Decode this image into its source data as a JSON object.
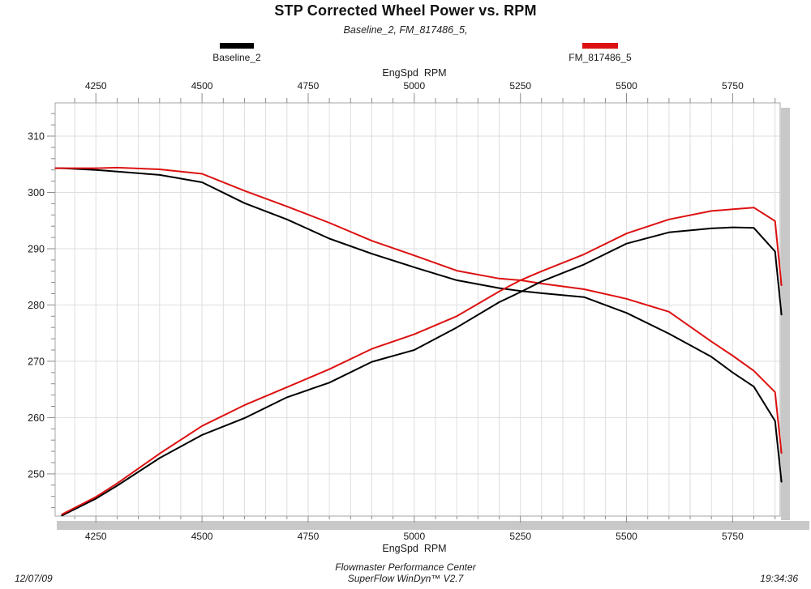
{
  "title": "STP Corrected Wheel Power vs. RPM",
  "subtitle": "Baseline_2, FM_817486_5,",
  "legend": [
    {
      "label": "Baseline_2",
      "color": "#000000"
    },
    {
      "label": "FM_817486_5",
      "color": "#dd1111"
    }
  ],
  "footer": {
    "date": "12/07/09",
    "center_line1": "Flowmaster Performance Center",
    "center_line2": "SuperFlow WinDyn™ V2.7",
    "time": "19:34:36"
  },
  "chart_data": {
    "type": "line",
    "title": "STP Corrected Wheel Power vs. RPM",
    "subtitle": "Baseline_2, FM_817486_5,",
    "xlabel": "EngSpd  RPM",
    "xlabel_positions": [
      "top",
      "bottom"
    ],
    "x_ticks": [
      4250,
      4500,
      4750,
      5000,
      5250,
      5500,
      5750
    ],
    "y_ticks": [
      250,
      260,
      270,
      280,
      290,
      300,
      310
    ],
    "x_minor_step": 50,
    "y_minor_step": 2,
    "xlim": [
      4154,
      5862
    ],
    "ylim": [
      242.5,
      315.9
    ],
    "grid": {
      "vertical_step": 50,
      "horizontal_step": 10,
      "on": true
    },
    "legend_position": "top",
    "x": [
      4155,
      4170,
      4250,
      4300,
      4400,
      4500,
      4600,
      4700,
      4800,
      4900,
      5000,
      5100,
      5200,
      5250,
      5300,
      5400,
      5500,
      5600,
      5700,
      5750,
      5800,
      5850,
      5865
    ],
    "series": [
      {
        "id": "baseline_2_falling",
        "name": "Baseline_2 (falling curve)",
        "color": "#000000",
        "values": [
          304.3,
          304.3,
          304.0,
          303.7,
          303.1,
          301.8,
          298.1,
          295.2,
          291.8,
          289.1,
          286.7,
          284.4,
          283.0,
          282.5,
          282.1,
          281.4,
          278.6,
          274.9,
          270.8,
          268.0,
          265.5,
          259.4,
          248.6
        ]
      },
      {
        "id": "fm_817486_5_falling",
        "name": "FM_817486_5 (falling curve)",
        "color": "#dd1111",
        "values": [
          304.3,
          304.3,
          304.3,
          304.4,
          304.1,
          303.3,
          300.3,
          297.5,
          294.6,
          291.4,
          288.8,
          286.1,
          284.7,
          284.4,
          283.8,
          282.8,
          281.1,
          278.8,
          273.5,
          271.0,
          268.3,
          264.5,
          253.7
        ]
      },
      {
        "id": "baseline_2_rising",
        "name": "Baseline_2 (rising curve)",
        "color": "#000000",
        "values": [
          null,
          242.6,
          245.6,
          247.9,
          252.8,
          256.9,
          259.9,
          263.6,
          266.2,
          269.9,
          272.0,
          276.0,
          280.5,
          282.3,
          284.2,
          287.2,
          290.9,
          292.9,
          293.6,
          293.8,
          293.7,
          289.5,
          278.3
        ]
      },
      {
        "id": "fm_817486_5_rising",
        "name": "FM_817486_5 (rising curve)",
        "color": "#dd1111",
        "values": [
          null,
          242.8,
          245.9,
          248.3,
          253.6,
          258.5,
          262.2,
          265.4,
          268.6,
          272.2,
          274.8,
          278.0,
          282.4,
          284.4,
          286.0,
          289.0,
          292.7,
          295.2,
          296.7,
          297.0,
          297.3,
          294.9,
          283.5
        ]
      }
    ]
  }
}
